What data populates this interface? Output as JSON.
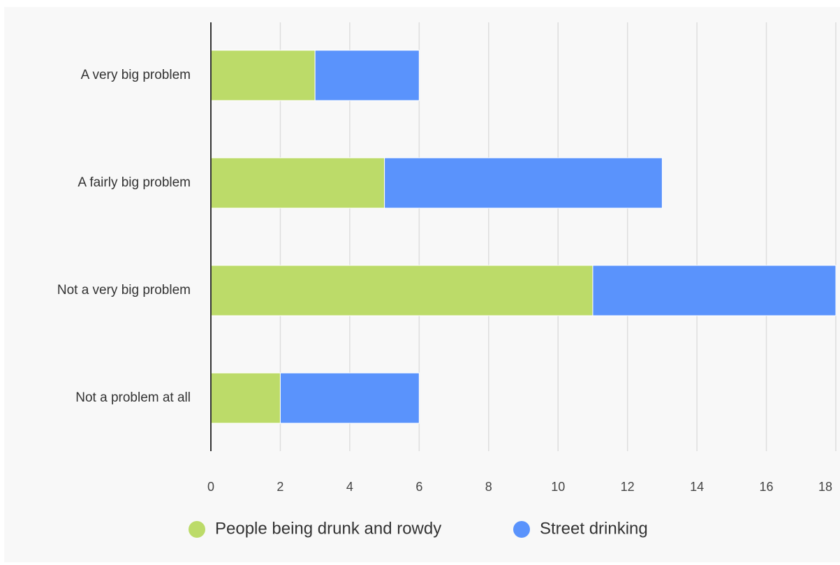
{
  "chart_data": {
    "type": "bar",
    "orientation": "horizontal",
    "stacked": true,
    "title": "",
    "xlabel": "",
    "ylabel": "",
    "categories": [
      "A very big problem",
      "A fairly big problem",
      "Not a very big problem",
      "Not a problem at all"
    ],
    "series": [
      {
        "name": "People being drunk and rowdy",
        "color": "#bcdb69",
        "values": [
          3,
          5,
          11,
          2
        ]
      },
      {
        "name": "Street drinking",
        "color": "#5a93fc",
        "values": [
          3,
          8,
          7,
          4
        ]
      }
    ],
    "xlim": [
      0,
      18
    ],
    "xticks": [
      "0",
      "2",
      "4",
      "6",
      "8",
      "10",
      "12",
      "14",
      "16",
      "18"
    ],
    "grid": true,
    "legend_position": "bottom"
  }
}
